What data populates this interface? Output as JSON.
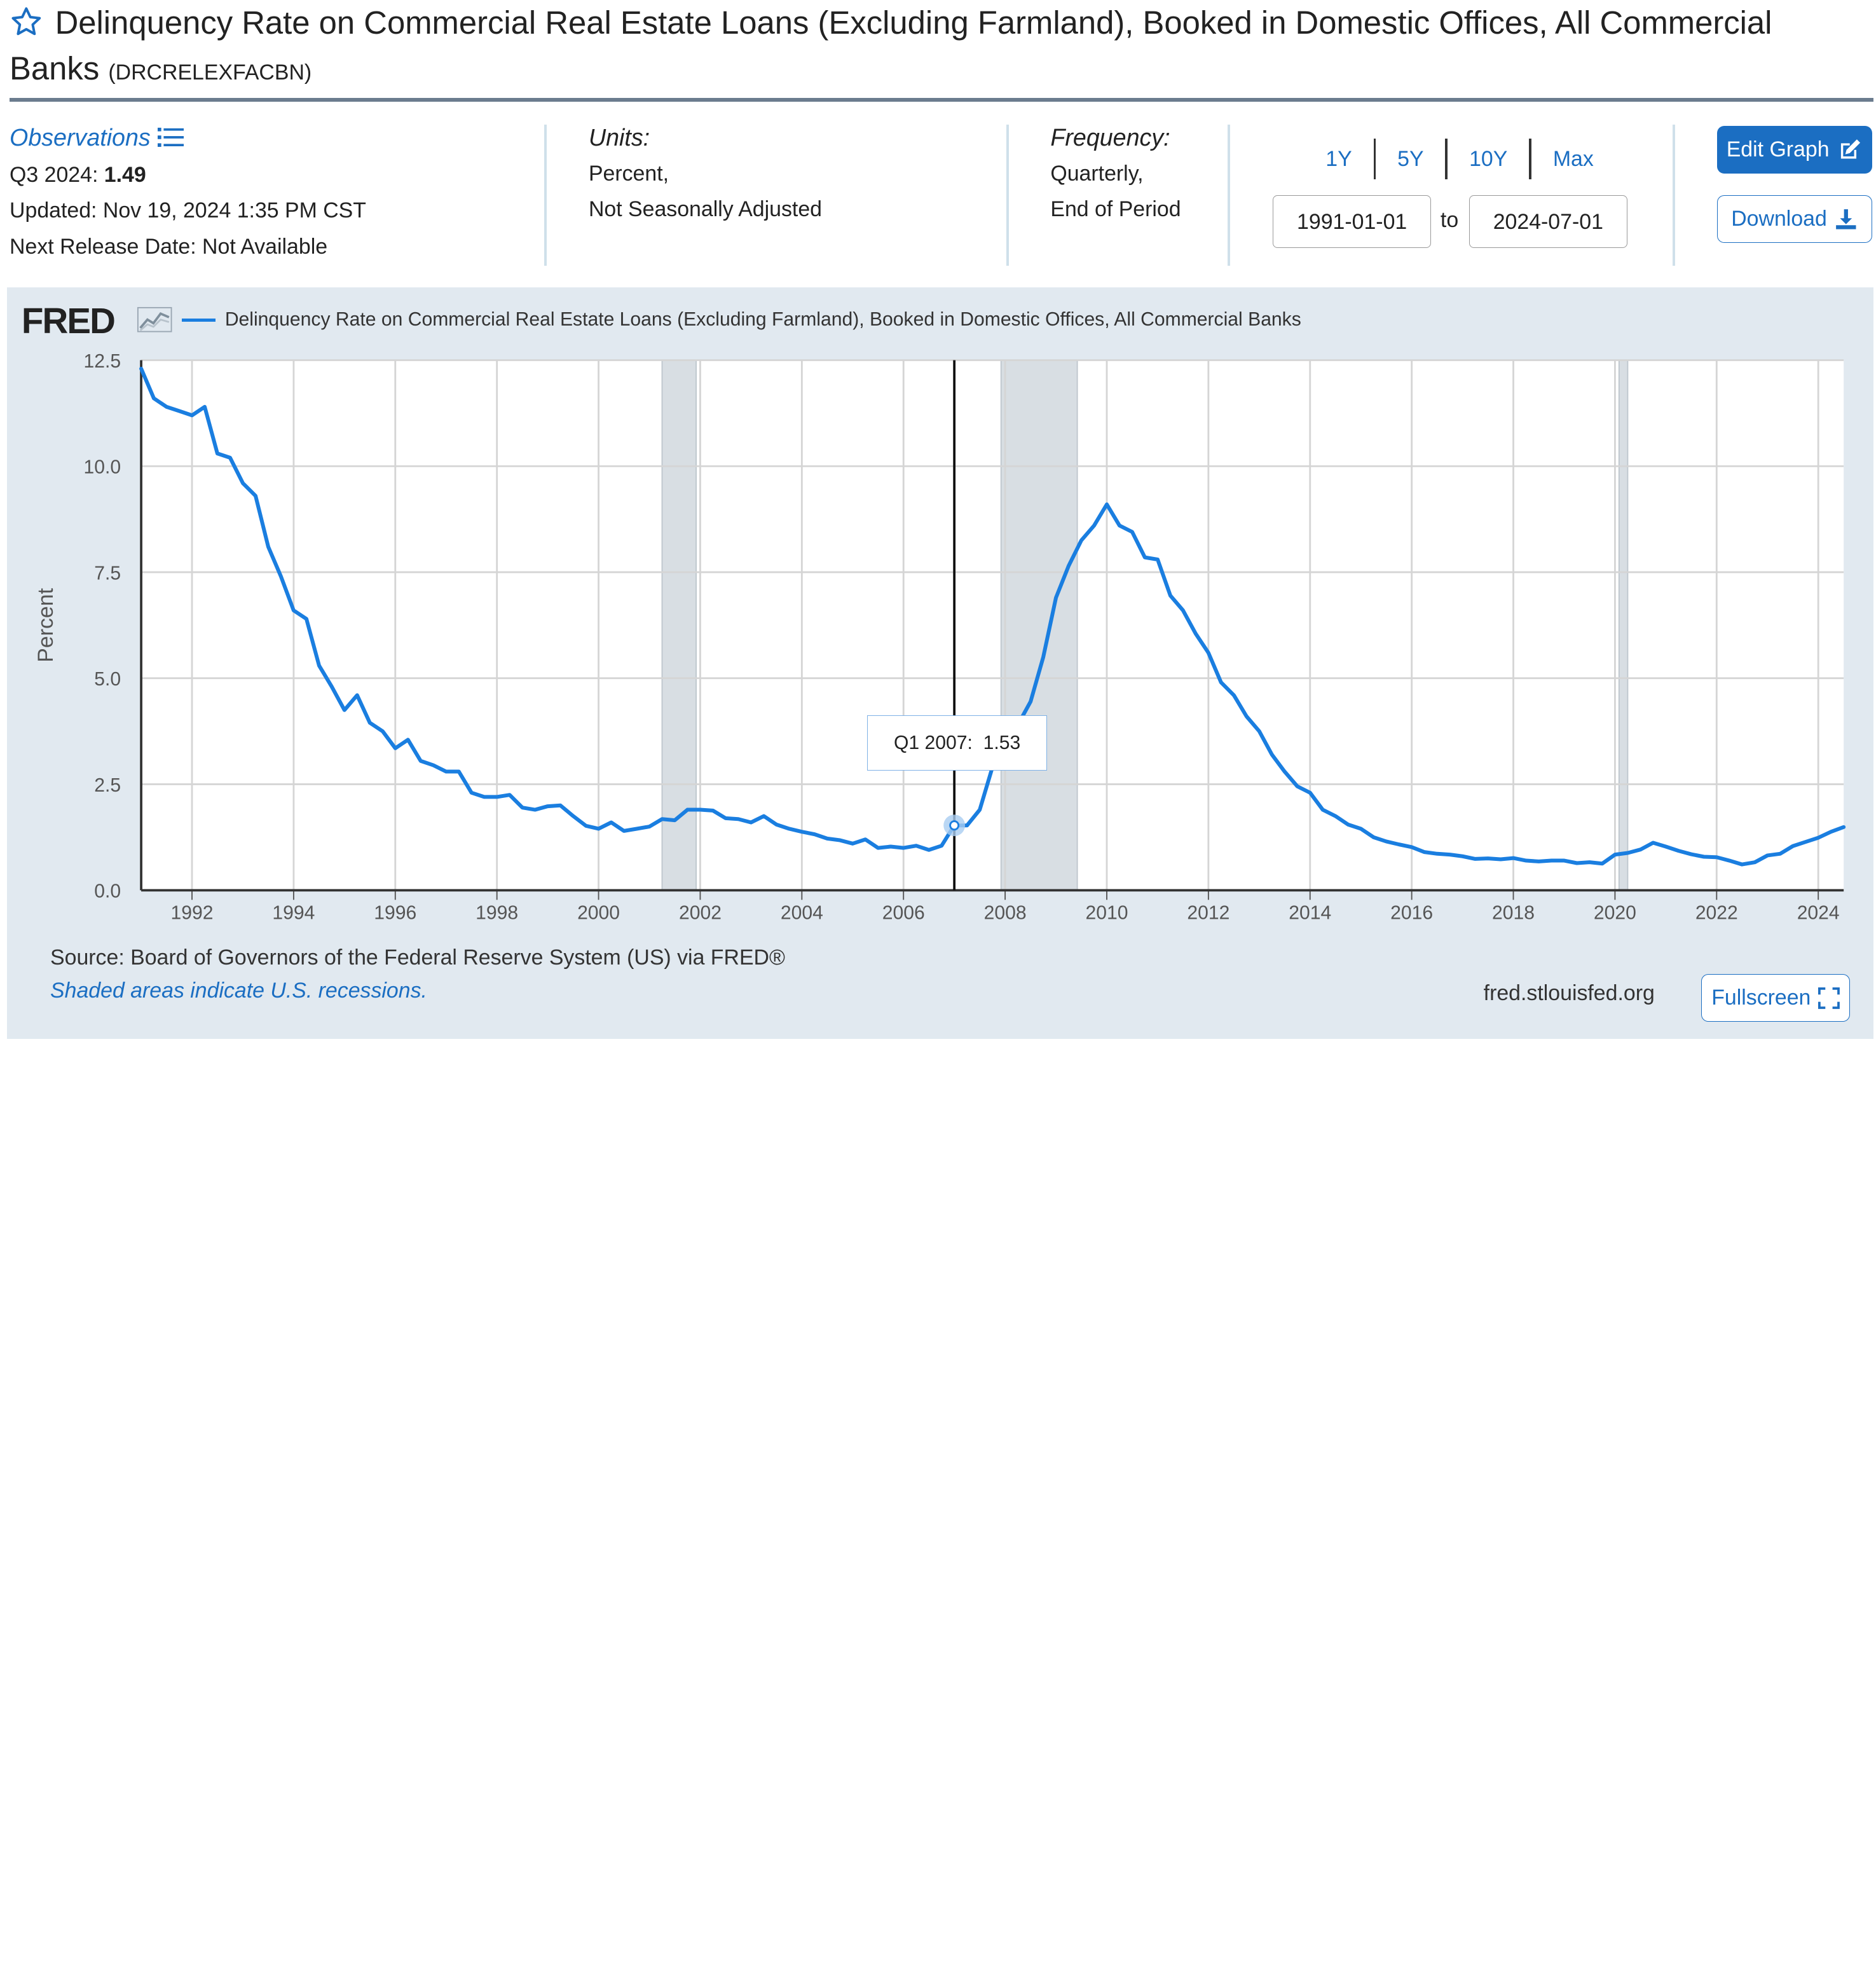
{
  "page_title": {
    "line1": "Delinquency Rate on Commercial Real Estate Loans (Excluding Farmland), Booked in Domestic Offices, All Commercial",
    "line2": "Banks",
    "series_id": "(DRCRELEXFACBN)"
  },
  "observations": {
    "link_label": "Observations",
    "period_label": "Q3 2024:",
    "value": "1.49",
    "updated": "Updated: Nov 19, 2024 1:35 PM CST",
    "next_release": "Next Release Date: Not Available"
  },
  "units": {
    "label": "Units:",
    "line1": "Percent,",
    "line2": "Not Seasonally Adjusted"
  },
  "frequency": {
    "label": "Frequency:",
    "line1": "Quarterly,",
    "line2": "End of Period"
  },
  "range": {
    "buttons": [
      "1Y",
      "5Y",
      "10Y",
      "Max"
    ],
    "start_date": "1991-01-01",
    "to_label": "to",
    "end_date": "2024-07-01"
  },
  "actions": {
    "edit_graph": "Edit Graph",
    "download": "Download",
    "fullscreen": "Fullscreen"
  },
  "chart_header": {
    "logo": "FRED",
    "legend": "Delinquency Rate on Commercial Real Estate Loans (Excluding Farmland), Booked in Domestic Offices, All Commercial Banks"
  },
  "tooltip": {
    "period": "Q1 2007:",
    "value": "1.53"
  },
  "footer": {
    "source": "Source: Board of Governors of the Federal Reserve System (US) via FRED®",
    "shaded_note": "Shaded areas indicate U.S. recessions.",
    "url": "fred.stlouisfed.org"
  },
  "colors": {
    "accent": "#1b6ec2",
    "series_line": "#1a7ee0",
    "panel_bg": "#e1e9f0",
    "recession": "#d8dee3"
  },
  "chart_data": {
    "type": "line",
    "title": "",
    "xlabel": "",
    "ylabel": "Percent",
    "xlim": [
      1991.0,
      2024.5
    ],
    "ylim": [
      0,
      12.5
    ],
    "y_ticks": [
      "0.0",
      "2.5",
      "5.0",
      "7.5",
      "10.0",
      "12.5"
    ],
    "x_ticks": [
      "1992",
      "1994",
      "1996",
      "1998",
      "2000",
      "2002",
      "2004",
      "2006",
      "2008",
      "2010",
      "2012",
      "2014",
      "2016",
      "2018",
      "2020",
      "2022",
      "2024"
    ],
    "grid": true,
    "legend": "top-left",
    "recessions": [
      [
        2001.25,
        2001.92
      ],
      [
        2007.92,
        2009.42
      ],
      [
        2020.08,
        2020.25
      ]
    ],
    "highlight": {
      "x": 2007.0,
      "y": 1.53,
      "label": "Q1 2007"
    },
    "series": [
      {
        "name": "Delinquency Rate on Commercial Real Estate Loans (Excluding Farmland), Booked in Domestic Offices, All Commercial Banks",
        "points": [
          [
            1991.0,
            12.3
          ],
          [
            1991.25,
            11.6
          ],
          [
            1991.5,
            11.4
          ],
          [
            1991.75,
            11.3
          ],
          [
            1992.0,
            11.2
          ],
          [
            1992.25,
            11.4
          ],
          [
            1992.5,
            10.3
          ],
          [
            1992.75,
            10.2
          ],
          [
            1993.0,
            9.6
          ],
          [
            1993.25,
            9.3
          ],
          [
            1993.5,
            8.1
          ],
          [
            1993.75,
            7.4
          ],
          [
            1994.0,
            6.6
          ],
          [
            1994.25,
            6.4
          ],
          [
            1994.5,
            5.3
          ],
          [
            1994.75,
            4.8
          ],
          [
            1995.0,
            4.25
          ],
          [
            1995.25,
            4.6
          ],
          [
            1995.5,
            3.95
          ],
          [
            1995.75,
            3.75
          ],
          [
            1996.0,
            3.35
          ],
          [
            1996.25,
            3.55
          ],
          [
            1996.5,
            3.05
          ],
          [
            1996.75,
            2.95
          ],
          [
            1997.0,
            2.8
          ],
          [
            1997.25,
            2.8
          ],
          [
            1997.5,
            2.3
          ],
          [
            1997.75,
            2.2
          ],
          [
            1998.0,
            2.2
          ],
          [
            1998.25,
            2.25
          ],
          [
            1998.5,
            1.95
          ],
          [
            1998.75,
            1.9
          ],
          [
            1999.0,
            1.98
          ],
          [
            1999.25,
            2.0
          ],
          [
            1999.5,
            1.75
          ],
          [
            1999.75,
            1.52
          ],
          [
            2000.0,
            1.45
          ],
          [
            2000.25,
            1.6
          ],
          [
            2000.5,
            1.4
          ],
          [
            2000.75,
            1.45
          ],
          [
            2001.0,
            1.5
          ],
          [
            2001.25,
            1.68
          ],
          [
            2001.5,
            1.65
          ],
          [
            2001.75,
            1.9
          ],
          [
            2002.0,
            1.9
          ],
          [
            2002.25,
            1.88
          ],
          [
            2002.5,
            1.7
          ],
          [
            2002.75,
            1.68
          ],
          [
            2003.0,
            1.6
          ],
          [
            2003.25,
            1.75
          ],
          [
            2003.5,
            1.55
          ],
          [
            2003.75,
            1.45
          ],
          [
            2004.0,
            1.38
          ],
          [
            2004.25,
            1.32
          ],
          [
            2004.5,
            1.22
          ],
          [
            2004.75,
            1.18
          ],
          [
            2005.0,
            1.1
          ],
          [
            2005.25,
            1.2
          ],
          [
            2005.5,
            1.0
          ],
          [
            2005.75,
            1.03
          ],
          [
            2006.0,
            1.0
          ],
          [
            2006.25,
            1.05
          ],
          [
            2006.5,
            0.95
          ],
          [
            2006.75,
            1.05
          ],
          [
            2007.0,
            1.53
          ],
          [
            2007.25,
            1.53
          ],
          [
            2007.5,
            1.9
          ],
          [
            2007.75,
            2.9
          ],
          [
            2008.0,
            3.65
          ],
          [
            2008.25,
            3.9
          ],
          [
            2008.5,
            4.45
          ],
          [
            2008.75,
            5.5
          ],
          [
            2009.0,
            6.9
          ],
          [
            2009.25,
            7.65
          ],
          [
            2009.5,
            8.25
          ],
          [
            2009.75,
            8.6
          ],
          [
            2010.0,
            9.1
          ],
          [
            2010.25,
            8.6
          ],
          [
            2010.5,
            8.45
          ],
          [
            2010.75,
            7.85
          ],
          [
            2011.0,
            7.8
          ],
          [
            2011.25,
            6.95
          ],
          [
            2011.5,
            6.6
          ],
          [
            2011.75,
            6.05
          ],
          [
            2012.0,
            5.6
          ],
          [
            2012.25,
            4.9
          ],
          [
            2012.5,
            4.6
          ],
          [
            2012.75,
            4.1
          ],
          [
            2013.0,
            3.75
          ],
          [
            2013.25,
            3.2
          ],
          [
            2013.5,
            2.8
          ],
          [
            2013.75,
            2.45
          ],
          [
            2014.0,
            2.3
          ],
          [
            2014.25,
            1.9
          ],
          [
            2014.5,
            1.75
          ],
          [
            2014.75,
            1.55
          ],
          [
            2015.0,
            1.45
          ],
          [
            2015.25,
            1.25
          ],
          [
            2015.5,
            1.15
          ],
          [
            2015.75,
            1.08
          ],
          [
            2016.0,
            1.02
          ],
          [
            2016.25,
            0.9
          ],
          [
            2016.5,
            0.86
          ],
          [
            2016.75,
            0.84
          ],
          [
            2017.0,
            0.8
          ],
          [
            2017.25,
            0.74
          ],
          [
            2017.5,
            0.75
          ],
          [
            2017.75,
            0.73
          ],
          [
            2018.0,
            0.76
          ],
          [
            2018.25,
            0.7
          ],
          [
            2018.5,
            0.68
          ],
          [
            2018.75,
            0.7
          ],
          [
            2019.0,
            0.7
          ],
          [
            2019.25,
            0.64
          ],
          [
            2019.5,
            0.66
          ],
          [
            2019.75,
            0.63
          ],
          [
            2020.0,
            0.84
          ],
          [
            2020.25,
            0.88
          ],
          [
            2020.5,
            0.96
          ],
          [
            2020.75,
            1.12
          ],
          [
            2021.0,
            1.03
          ],
          [
            2021.25,
            0.93
          ],
          [
            2021.5,
            0.85
          ],
          [
            2021.75,
            0.79
          ],
          [
            2022.0,
            0.78
          ],
          [
            2022.25,
            0.7
          ],
          [
            2022.5,
            0.61
          ],
          [
            2022.75,
            0.66
          ],
          [
            2023.0,
            0.82
          ],
          [
            2023.25,
            0.86
          ],
          [
            2023.5,
            1.04
          ],
          [
            2023.75,
            1.14
          ],
          [
            2024.0,
            1.24
          ],
          [
            2024.25,
            1.38
          ],
          [
            2024.5,
            1.49
          ]
        ]
      }
    ]
  }
}
